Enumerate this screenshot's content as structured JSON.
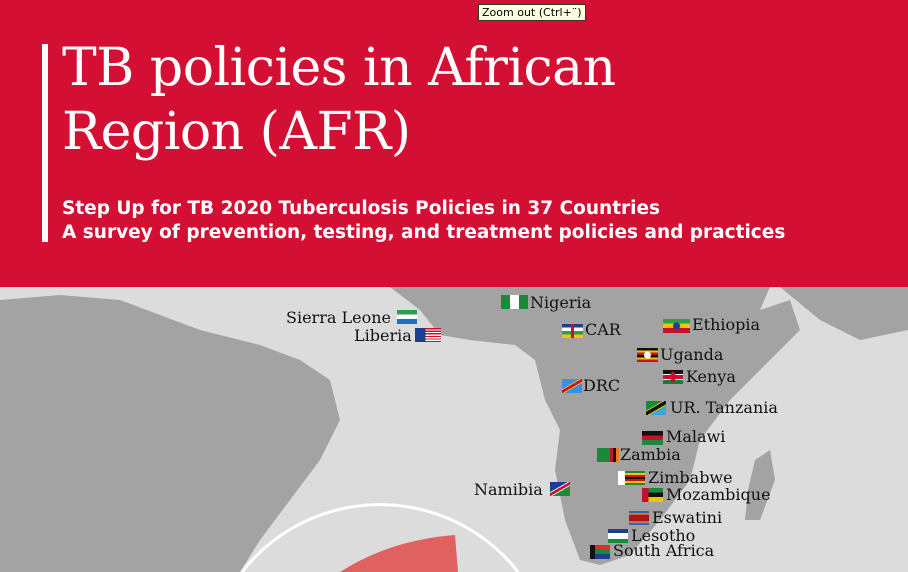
{
  "header": {
    "title_line1": "TB policies in African",
    "title_line2": "Region (AFR)",
    "subtitle_line1": "Step Up for TB 2020 Tuberculosis Policies in 37 Countries",
    "subtitle_line2": "A survey of prevention, testing, and treatment policies and practices",
    "background_color": "#d31033"
  },
  "tooltip": "Zoom out (Ctrl+¨)",
  "map": {
    "countries": [
      {
        "name": "Nigeria",
        "flag": "nigeria-flag"
      },
      {
        "name": "Sierra Leone",
        "flag": "sierra-leone-flag"
      },
      {
        "name": "Liberia",
        "flag": "liberia-flag"
      },
      {
        "name": "CAR",
        "flag": "car-flag"
      },
      {
        "name": "Ethiopia",
        "flag": "ethiopia-flag"
      },
      {
        "name": "Uganda",
        "flag": "uganda-flag"
      },
      {
        "name": "Kenya",
        "flag": "kenya-flag"
      },
      {
        "name": "DRC",
        "flag": "drc-flag"
      },
      {
        "name": "UR. Tanzania",
        "flag": "tanzania-flag"
      },
      {
        "name": "Malawi",
        "flag": "malawi-flag"
      },
      {
        "name": "Zambia",
        "flag": "zambia-flag"
      },
      {
        "name": "Zimbabwe",
        "flag": "zimbabwe-flag"
      },
      {
        "name": "Mozambique",
        "flag": "mozambique-flag"
      },
      {
        "name": "Namibia",
        "flag": "namibia-flag"
      },
      {
        "name": "Eswatini",
        "flag": "eswatini-flag"
      },
      {
        "name": "Lesotho",
        "flag": "lesotho-flag"
      },
      {
        "name": "South Africa",
        "flag": "south-africa-flag"
      }
    ]
  }
}
